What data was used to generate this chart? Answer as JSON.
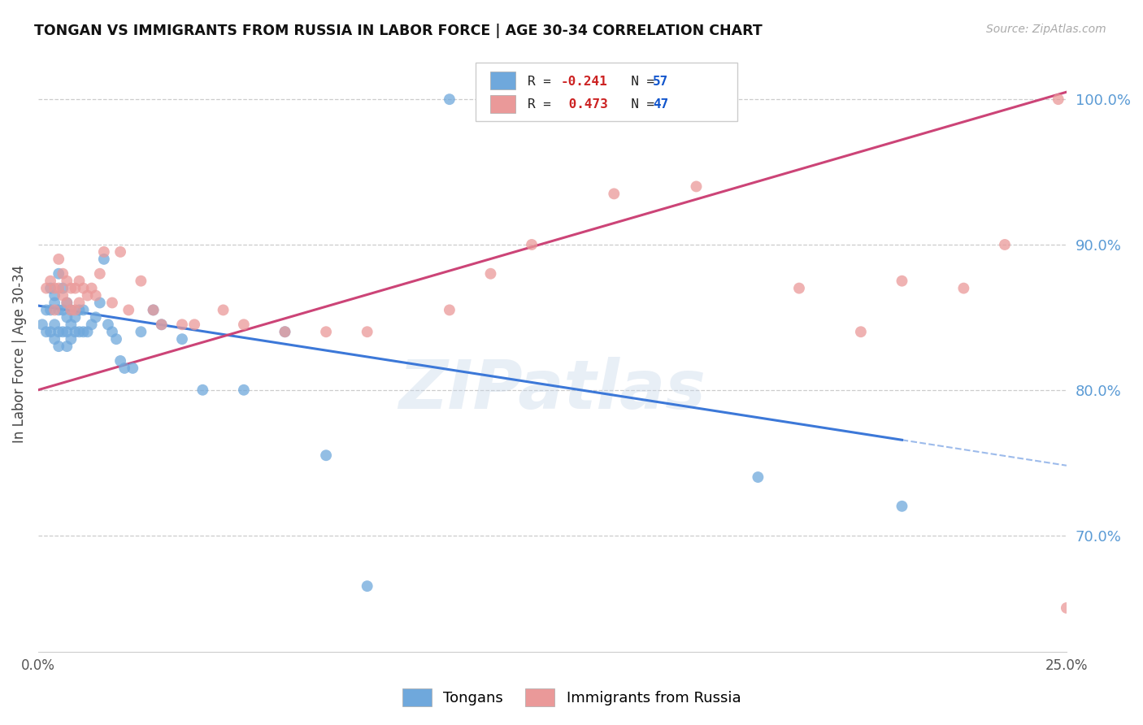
{
  "title": "TONGAN VS IMMIGRANTS FROM RUSSIA IN LABOR FORCE | AGE 30-34 CORRELATION CHART",
  "source": "Source: ZipAtlas.com",
  "ylabel_label": "In Labor Force | Age 30-34",
  "xlim": [
    0.0,
    0.25
  ],
  "ylim": [
    0.62,
    1.03
  ],
  "y_ticks_right": [
    0.7,
    0.8,
    0.9,
    1.0
  ],
  "y_tick_labels_right": [
    "70.0%",
    "80.0%",
    "90.0%",
    "100.0%"
  ],
  "legend_blue_label": "Tongans",
  "legend_pink_label": "Immigrants from Russia",
  "R_blue": "-0.241",
  "N_blue": "57",
  "R_pink": "0.473",
  "N_pink": "47",
  "blue_color": "#6fa8dc",
  "pink_color": "#ea9999",
  "blue_line_color": "#3c78d8",
  "pink_line_color": "#cc4477",
  "watermark": "ZIPatlas",
  "blue_points_x": [
    0.001,
    0.002,
    0.002,
    0.003,
    0.003,
    0.003,
    0.004,
    0.004,
    0.004,
    0.004,
    0.005,
    0.005,
    0.005,
    0.005,
    0.006,
    0.006,
    0.006,
    0.007,
    0.007,
    0.007,
    0.007,
    0.008,
    0.008,
    0.008,
    0.009,
    0.009,
    0.01,
    0.01,
    0.011,
    0.011,
    0.012,
    0.013,
    0.014,
    0.015,
    0.016,
    0.017,
    0.018,
    0.019,
    0.02,
    0.021,
    0.023,
    0.025,
    0.028,
    0.03,
    0.035,
    0.04,
    0.05,
    0.06,
    0.07,
    0.08,
    0.1,
    0.11,
    0.12,
    0.135,
    0.15,
    0.175,
    0.21
  ],
  "blue_points_y": [
    0.845,
    0.855,
    0.84,
    0.87,
    0.855,
    0.84,
    0.865,
    0.86,
    0.845,
    0.835,
    0.88,
    0.855,
    0.84,
    0.83,
    0.87,
    0.855,
    0.84,
    0.86,
    0.85,
    0.84,
    0.83,
    0.855,
    0.845,
    0.835,
    0.85,
    0.84,
    0.855,
    0.84,
    0.855,
    0.84,
    0.84,
    0.845,
    0.85,
    0.86,
    0.89,
    0.845,
    0.84,
    0.835,
    0.82,
    0.815,
    0.815,
    0.84,
    0.855,
    0.845,
    0.835,
    0.8,
    0.8,
    0.84,
    0.755,
    0.665,
    1.0,
    1.0,
    1.0,
    1.0,
    1.0,
    0.74,
    0.72
  ],
  "pink_points_x": [
    0.002,
    0.003,
    0.004,
    0.004,
    0.005,
    0.005,
    0.006,
    0.006,
    0.007,
    0.007,
    0.008,
    0.008,
    0.009,
    0.009,
    0.01,
    0.01,
    0.011,
    0.012,
    0.013,
    0.014,
    0.015,
    0.016,
    0.018,
    0.02,
    0.022,
    0.025,
    0.028,
    0.03,
    0.035,
    0.038,
    0.045,
    0.05,
    0.06,
    0.07,
    0.08,
    0.1,
    0.11,
    0.12,
    0.14,
    0.16,
    0.185,
    0.2,
    0.21,
    0.225,
    0.235,
    0.248,
    0.25
  ],
  "pink_points_y": [
    0.87,
    0.875,
    0.87,
    0.855,
    0.89,
    0.87,
    0.88,
    0.865,
    0.875,
    0.86,
    0.87,
    0.855,
    0.87,
    0.855,
    0.875,
    0.86,
    0.87,
    0.865,
    0.87,
    0.865,
    0.88,
    0.895,
    0.86,
    0.895,
    0.855,
    0.875,
    0.855,
    0.845,
    0.845,
    0.845,
    0.855,
    0.845,
    0.84,
    0.84,
    0.84,
    0.855,
    0.88,
    0.9,
    0.935,
    0.94,
    0.87,
    0.84,
    0.875,
    0.87,
    0.9,
    1.0,
    0.65
  ],
  "blue_line_y0": 0.858,
  "blue_line_y1": 0.748,
  "pink_line_y0": 0.8,
  "pink_line_y1": 1.005
}
